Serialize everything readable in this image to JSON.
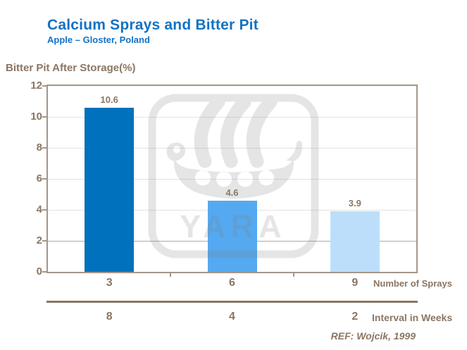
{
  "header": {
    "title": "Calcium Sprays and Bitter Pit",
    "subtitle": "Apple – Gloster, Poland"
  },
  "y_axis": {
    "title": "Bitter Pit After Storage(%)"
  },
  "x_axis": {
    "row1_title": "Number of Sprays",
    "row2_title": "Interval in Weeks"
  },
  "footer": {
    "reference": "REF: Wojcik, 1999"
  },
  "watermark": {
    "text": "YARA"
  },
  "colors": {
    "title_blue": "#1272c4",
    "text_brown": "#8a7663",
    "axis_frame": "#a3968a",
    "grid_light": "#e2e2e2",
    "grid_dark": "#b3a79a",
    "watermark_gray": "#808080"
  },
  "chart_data": {
    "type": "bar",
    "title": "Calcium Sprays and Bitter Pit",
    "subtitle": "Apple – Gloster, Poland",
    "ylabel": "Bitter Pit After Storage(%)",
    "ylim": [
      0,
      12
    ],
    "yticks": [
      0,
      2,
      4,
      6,
      8,
      10,
      12
    ],
    "grid": true,
    "legend_position": "none",
    "x_row1_title": "Number of Sprays",
    "x_row2_title": "Interval in Weeks",
    "bars": [
      {
        "number_of_sprays": "3",
        "interval_in_weeks": "8",
        "value": 10.6,
        "label": "10.6",
        "color": "#0071bc"
      },
      {
        "number_of_sprays": "6",
        "interval_in_weeks": "4",
        "value": 4.6,
        "label": "4.6",
        "color": "#55a9f0"
      },
      {
        "number_of_sprays": "9",
        "interval_in_weeks": "2",
        "value": 3.9,
        "label": "3.9",
        "color": "#bddefb"
      }
    ],
    "reference": "REF: Wojcik, 1999"
  }
}
